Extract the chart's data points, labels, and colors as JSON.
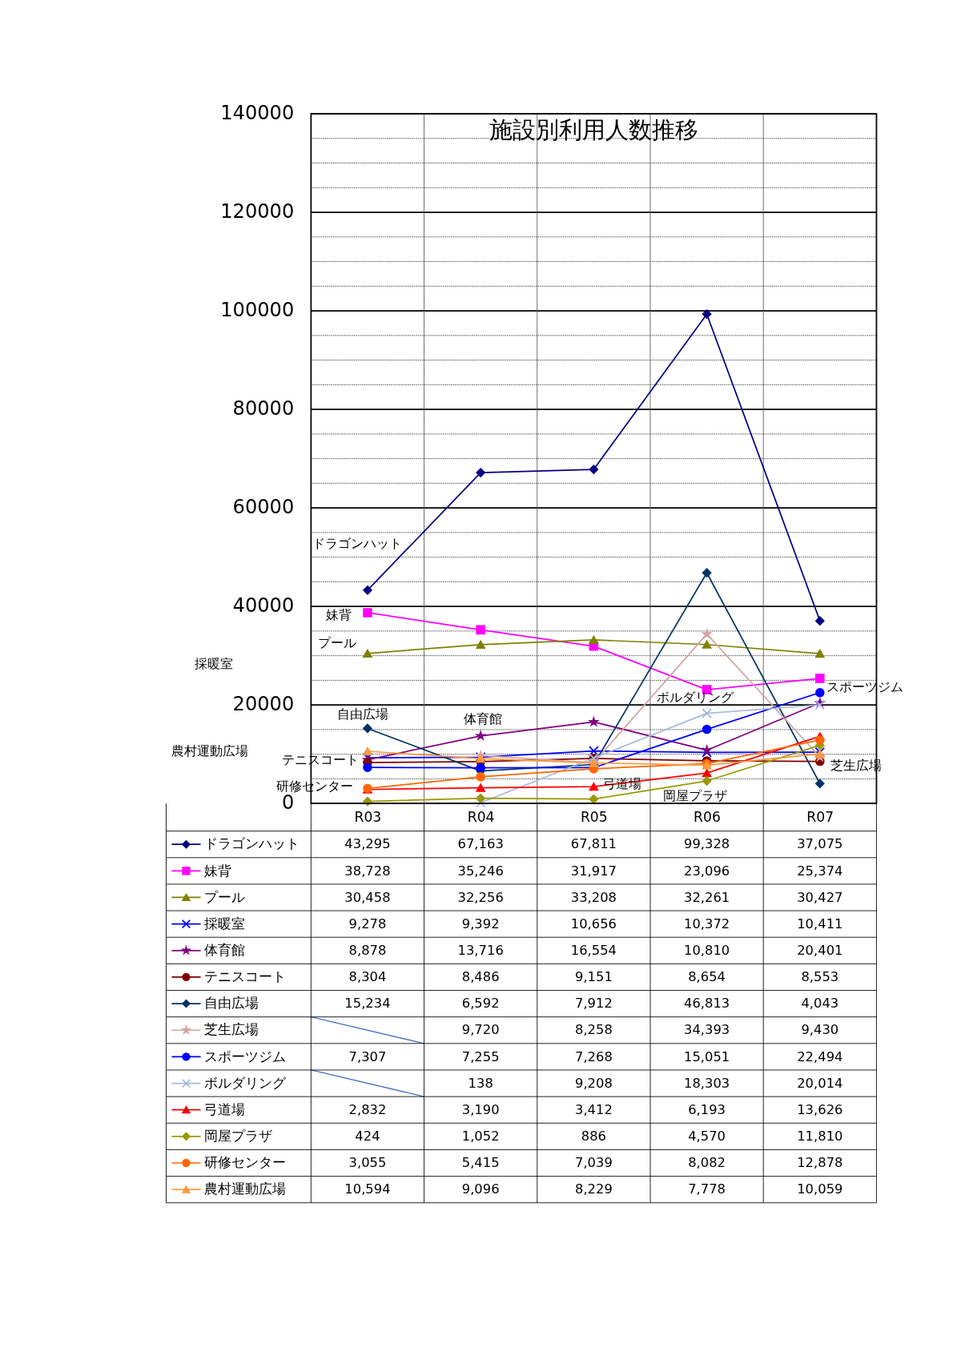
{
  "chart_data": {
    "type": "line",
    "title": "施設別利用人数推移",
    "categories": [
      "R03",
      "R04",
      "R05",
      "R06",
      "R07"
    ],
    "ylim": [
      0,
      140000
    ],
    "yticks": [
      0,
      {
        "value": 5000,
        "label": null
      },
      {
        "value": 10000,
        "label": null
      },
      {
        "value": 15000,
        "label": null
      },
      20000,
      {
        "value": 25000,
        "label": null
      },
      {
        "value": 30000,
        "label": null
      },
      {
        "value": 35000,
        "label": null
      },
      40000,
      {
        "value": 45000,
        "label": null
      },
      {
        "value": 50000,
        "label": null
      },
      {
        "value": 55000,
        "label": null
      },
      60000,
      {
        "value": 65000,
        "label": null
      },
      {
        "value": 70000,
        "label": null
      },
      {
        "value": 75000,
        "label": null
      },
      80000,
      {
        "value": 85000,
        "label": null
      },
      {
        "value": 90000,
        "label": null
      },
      {
        "value": 95000,
        "label": null
      },
      100000,
      {
        "value": 105000,
        "label": null
      },
      {
        "value": 110000,
        "label": null
      },
      {
        "value": 115000,
        "label": null
      },
      120000,
      {
        "value": 125000,
        "label": null
      },
      {
        "value": 130000,
        "label": null
      },
      {
        "value": 135000,
        "label": null
      },
      140000
    ],
    "grid": true,
    "legend": "bottom",
    "line_style": "solid",
    "series": [
      {
        "name": "ドラゴンハット",
        "color": "#000080",
        "marker": "diamond",
        "values": [
          43295,
          67163,
          67811,
          99328,
          37075
        ],
        "value_labels": [
          "43,295",
          "67,163",
          "67,811",
          "99,328",
          "37,075"
        ]
      },
      {
        "name": "妹背",
        "color": "#ff00ff",
        "marker": "square",
        "values": [
          38728,
          35246,
          31917,
          23096,
          25374
        ],
        "value_labels": [
          "38,728",
          "35,246",
          "31,917",
          "23,096",
          "25,374"
        ]
      },
      {
        "name": "プール",
        "color": "#808000",
        "marker": "triangle",
        "values": [
          30458,
          32256,
          33208,
          32261,
          30427
        ],
        "value_labels": [
          "30,458",
          "32,256",
          "33,208",
          "32,261",
          "30,427"
        ]
      },
      {
        "name": "採暖室",
        "color": "#0000ff",
        "marker": "cross",
        "values": [
          9278,
          9392,
          10656,
          10372,
          10411
        ],
        "value_labels": [
          "9,278",
          "9,392",
          "10,656",
          "10,372",
          "10,411"
        ]
      },
      {
        "name": "体育館",
        "color": "#800080",
        "marker": "star",
        "values": [
          8878,
          13716,
          16554,
          10810,
          20401
        ],
        "value_labels": [
          "8,878",
          "13,716",
          "16,554",
          "10,810",
          "20,401"
        ]
      },
      {
        "name": "テニスコート",
        "color": "#800000",
        "marker": "circle",
        "values": [
          8304,
          8486,
          9151,
          8654,
          8553
        ],
        "value_labels": [
          "8,304",
          "8,486",
          "9,151",
          "8,654",
          "8,553"
        ]
      },
      {
        "name": "自由広場",
        "color": "#003366",
        "marker": "diamond",
        "values": [
          15234,
          6592,
          7912,
          46813,
          4043
        ],
        "value_labels": [
          "15,234",
          "6,592",
          "7,912",
          "46,813",
          "4,043"
        ]
      },
      {
        "name": "芝生広場",
        "color": "#d4a5a5",
        "marker": "star",
        "values": [
          null,
          9720,
          8258,
          34393,
          9430
        ],
        "value_labels": [
          null,
          "9,720",
          "8,258",
          "34,393",
          "9,430"
        ]
      },
      {
        "name": "スポーツジム",
        "color": "#0000ff",
        "marker": "circle",
        "values": [
          7307,
          7255,
          7268,
          15051,
          22494
        ],
        "value_labels": [
          "7,307",
          "7,255",
          "7,268",
          "15,051",
          "22,494"
        ]
      },
      {
        "name": "ボルダリング",
        "color": "#a6b8dc",
        "marker": "cross",
        "values": [
          null,
          138,
          9208,
          18303,
          20014
        ],
        "value_labels": [
          null,
          "138",
          "9,208",
          "18,303",
          "20,014"
        ]
      },
      {
        "name": "弓道場",
        "color": "#ff0000",
        "marker": "triangle",
        "values": [
          2832,
          3190,
          3412,
          6193,
          13626
        ],
        "value_labels": [
          "2,832",
          "3,190",
          "3,412",
          "6,193",
          "13,626"
        ]
      },
      {
        "name": "岡屋プラザ",
        "color": "#999900",
        "marker": "diamond",
        "values": [
          424,
          1052,
          886,
          4570,
          11810
        ],
        "value_labels": [
          "424",
          "1,052",
          "886",
          "4,570",
          "11,810"
        ]
      },
      {
        "name": "研修センター",
        "color": "#ff6600",
        "marker": "circle",
        "values": [
          3055,
          5415,
          7039,
          8082,
          12878
        ],
        "value_labels": [
          "3,055",
          "5,415",
          "7,039",
          "8,082",
          "12,878"
        ]
      },
      {
        "name": "農村運動広場",
        "color": "#ff9a40",
        "marker": "triangle",
        "values": [
          10594,
          9096,
          8229,
          7778,
          10059
        ],
        "value_labels": [
          "10,594",
          "9,096",
          "8,229",
          "7,778",
          "10,059"
        ]
      }
    ],
    "annotations": [
      "ドラゴンハット",
      "妹背",
      "プール",
      "採暖室",
      "自由広場",
      "体育館",
      "ボルダリング",
      "スポーツジム",
      "農村運動広場",
      "テニスコート",
      "芝生広場",
      "研修センター",
      "弓道場",
      "岡屋プラザ"
    ]
  }
}
